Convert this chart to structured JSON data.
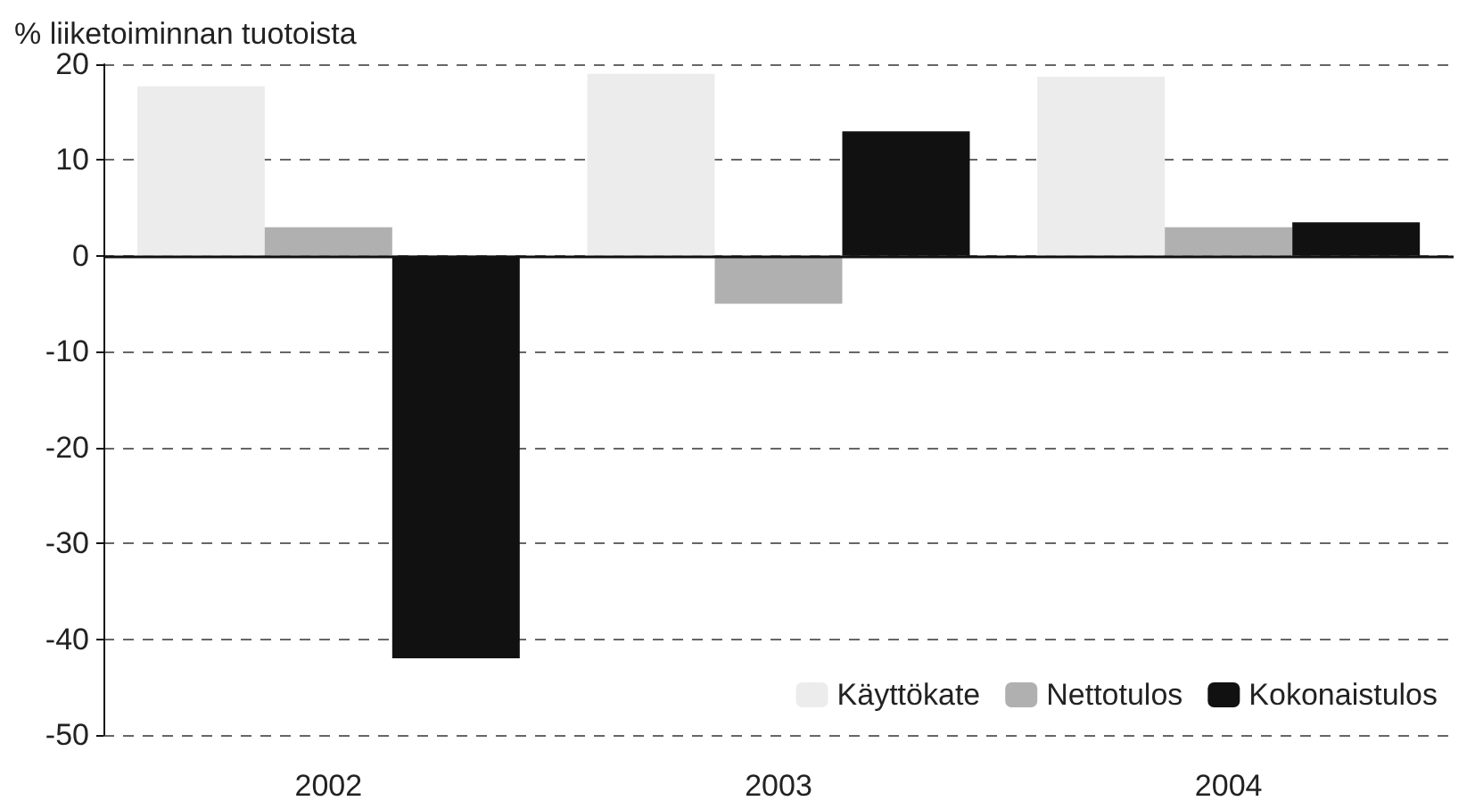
{
  "chart_data": {
    "type": "bar",
    "ylabel": "% liiketoiminnan tuotoista",
    "categories": [
      "2002",
      "2003",
      "2004"
    ],
    "series": [
      {
        "name": "Käyttökate",
        "color": "#ececec",
        "values": [
          17.7,
          19,
          18.7
        ]
      },
      {
        "name": "Nettotulos",
        "color": "#b0b0b0",
        "values": [
          3,
          -5,
          3
        ]
      },
      {
        "name": "Kokonaistulos",
        "color": "#111111",
        "values": [
          -42,
          13,
          3.5
        ]
      }
    ],
    "ylim": [
      -50,
      20
    ],
    "yticks": [
      -50,
      -40,
      -30,
      -20,
      -10,
      0,
      10,
      20
    ],
    "grid": "y",
    "legend": "bottom right"
  }
}
